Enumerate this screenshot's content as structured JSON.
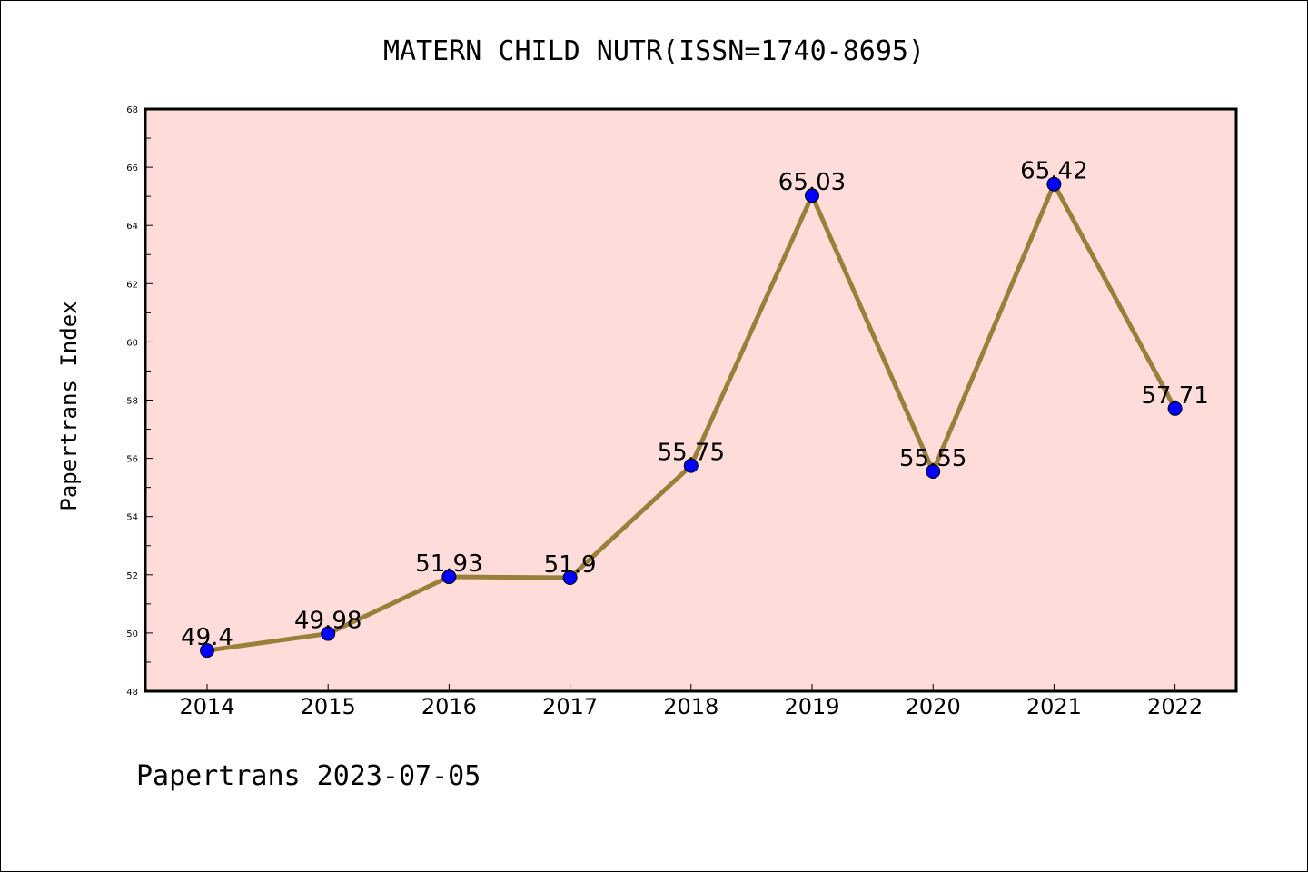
{
  "chart_data": {
    "type": "line",
    "title": "MATERN CHILD NUTR(ISSN=1740-8695)",
    "xlabel": "",
    "ylabel": "Papertrans Index",
    "x": [
      "2014",
      "2015",
      "2016",
      "2017",
      "2018",
      "2019",
      "2020",
      "2021",
      "2022"
    ],
    "series": [
      {
        "values": [
          49.4,
          49.98,
          51.93,
          51.9,
          55.75,
          65.03,
          55.55,
          65.42,
          57.71
        ],
        "labels": [
          "49.4",
          "49.98",
          "51.93",
          "51.9",
          "55.75",
          "65.03",
          "55.55",
          "65.42",
          "57.71"
        ],
        "line_color": "#9a7f3a",
        "marker_color": "#0000ff"
      }
    ],
    "ylim": [
      48,
      68
    ],
    "yticks": [
      "48",
      "50",
      "52",
      "54",
      "56",
      "58",
      "60",
      "62",
      "64",
      "66",
      "68"
    ],
    "plot_background": "#fddcda",
    "grid": false,
    "footer": "Papertrans 2023-07-05"
  }
}
